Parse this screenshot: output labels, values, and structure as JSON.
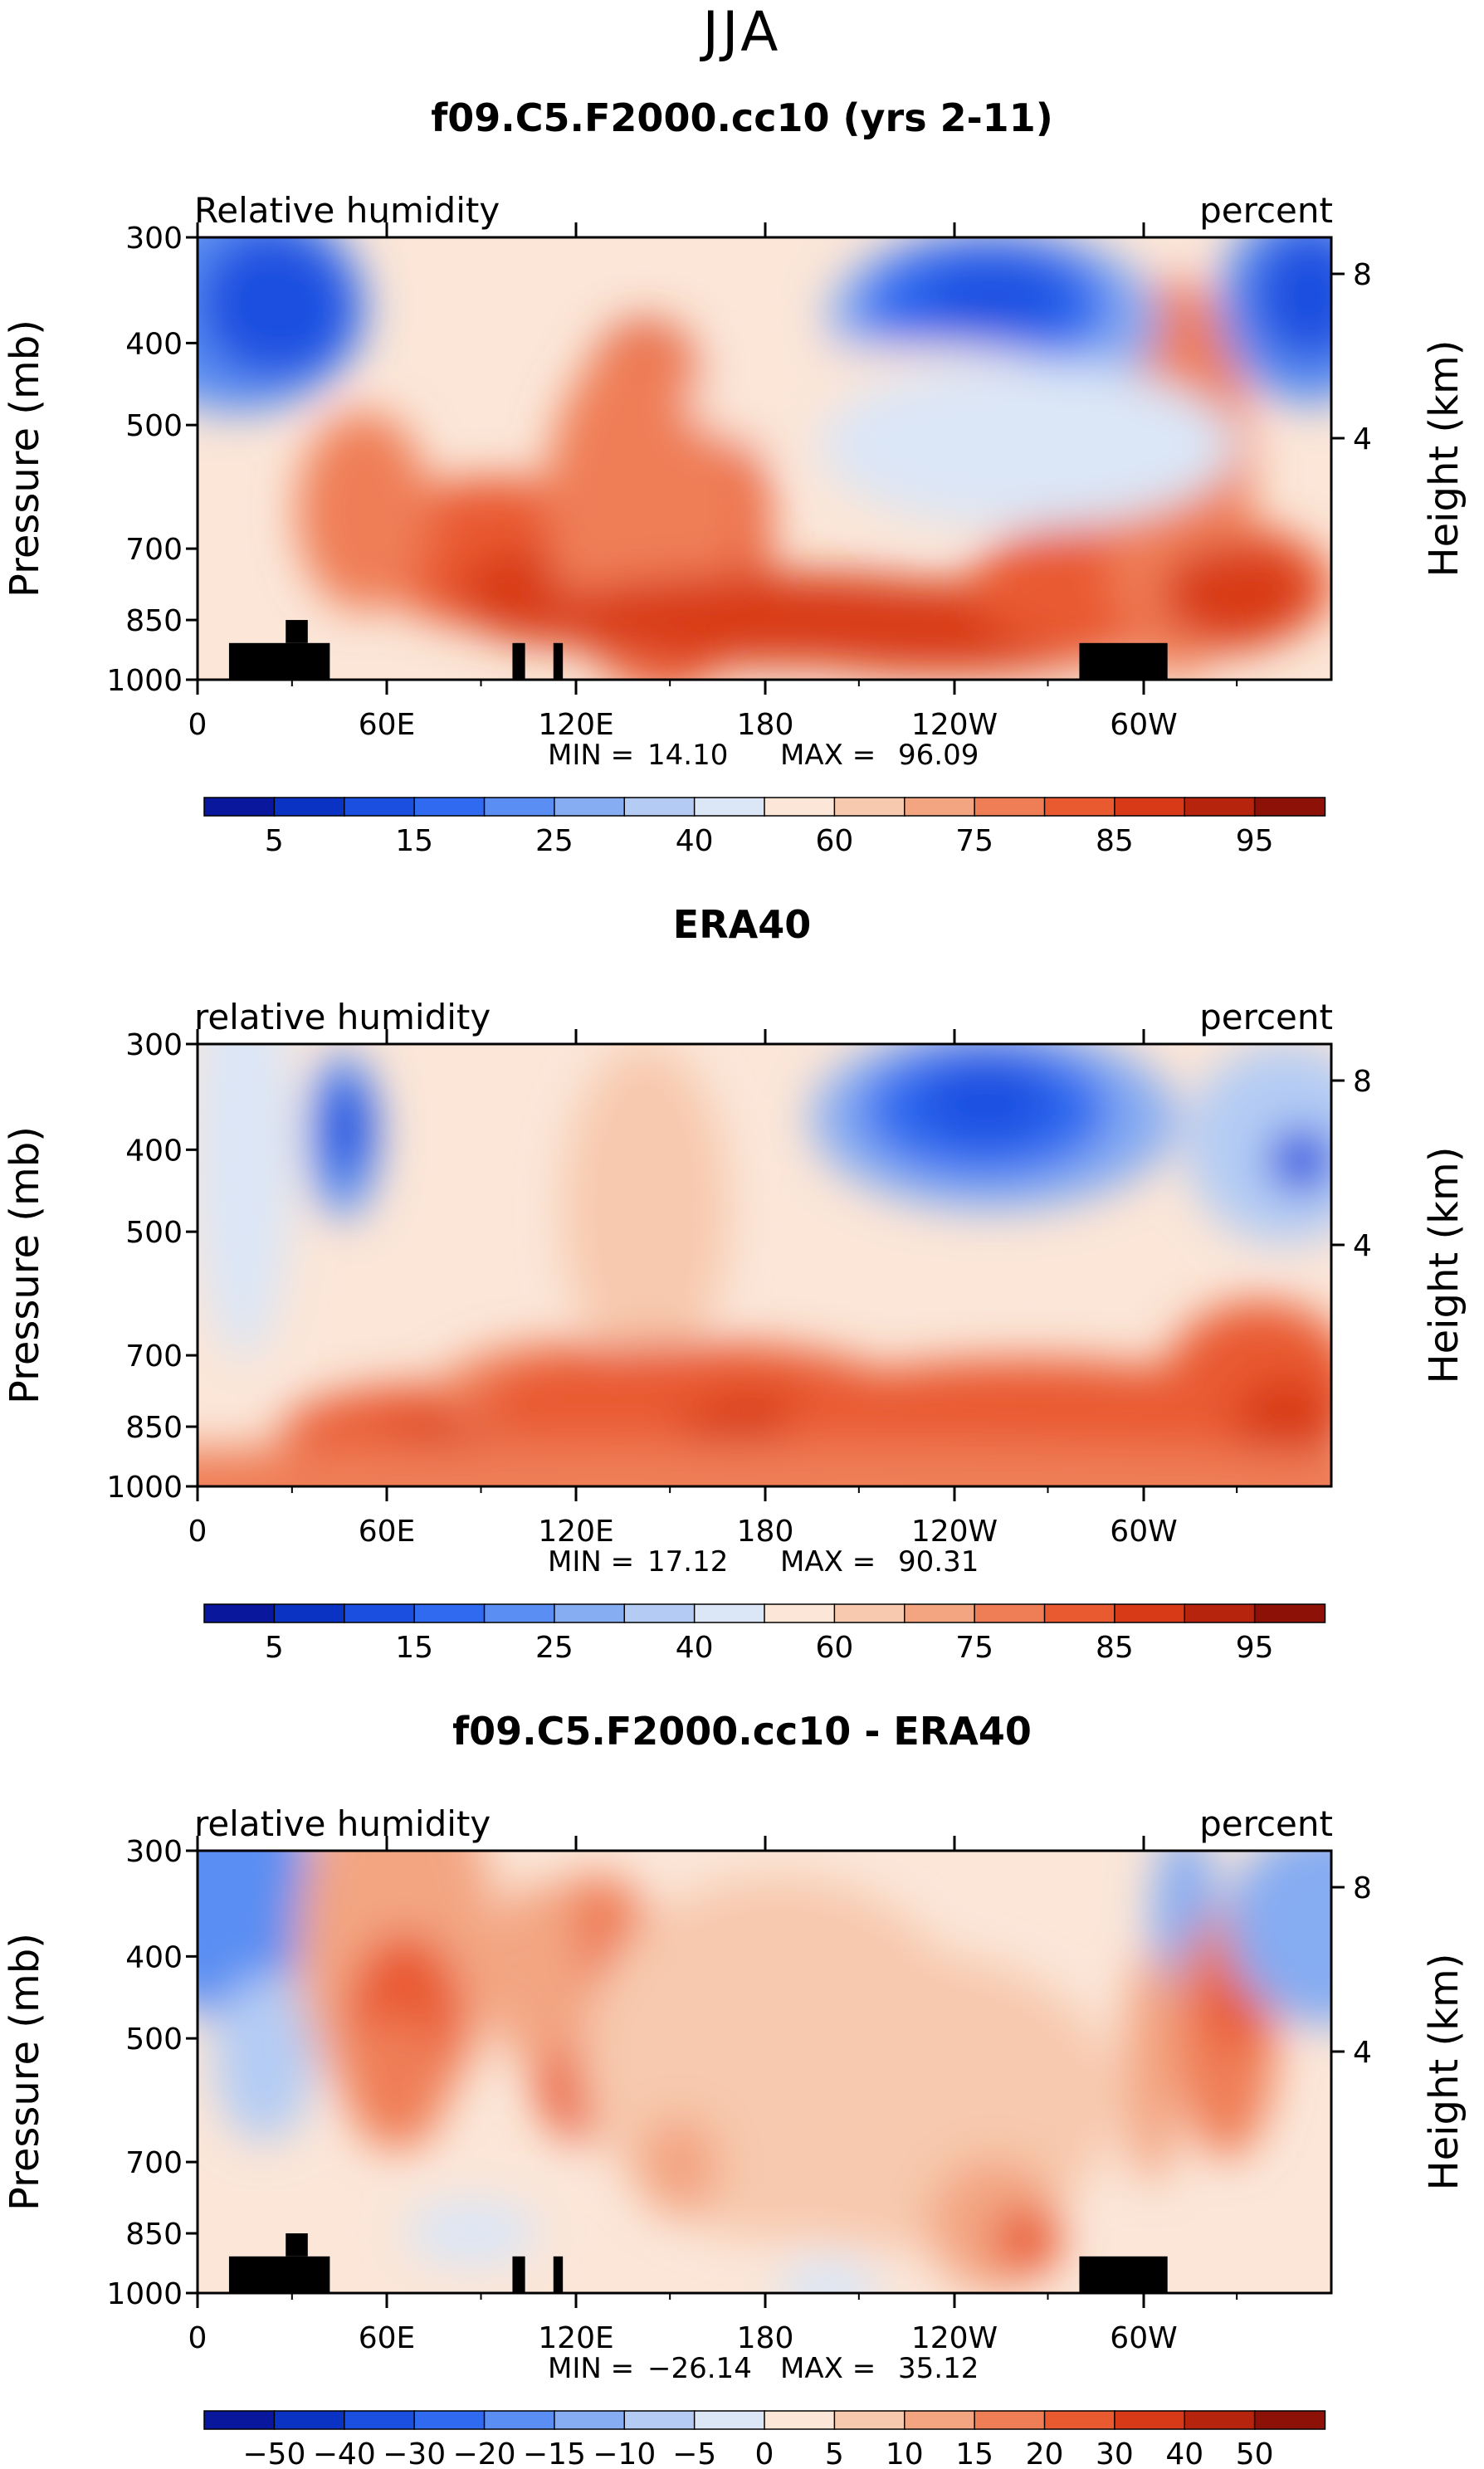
{
  "page_title": "JJA",
  "chart_data": [
    {
      "type": "heatmap",
      "title": "f09.C5.F2000.cc10 (yrs 2-11)",
      "left_string": "Relative humidity",
      "right_string": "percent",
      "ylabel": "Pressure (mb)",
      "y2label": "Height (km)",
      "xticks": [
        "0",
        "60E",
        "120E",
        "180",
        "120W",
        "60W"
      ],
      "yticks": [
        "300",
        "400",
        "500",
        "700",
        "850",
        "1000"
      ],
      "y2ticks": [
        "8",
        "4"
      ],
      "min_label": "MIN =",
      "min_value": "14.10",
      "max_label": "MAX =",
      "max_value": "96.09",
      "colorbar_labels": [
        "5",
        "15",
        "25",
        "40",
        "60",
        "75",
        "85",
        "95"
      ],
      "palette": [
        "#08179b",
        "#0a33c4",
        "#1a4fe0",
        "#2f6af0",
        "#5a8ef2",
        "#86acf2",
        "#b4ccf4",
        "#dbe6f6",
        "#fbe6d8",
        "#f7c9ae",
        "#f3a582",
        "#ef7e56",
        "#e95a30",
        "#d83a18",
        "#b7240e",
        "#8e1108"
      ]
    },
    {
      "type": "heatmap",
      "title": "ERA40",
      "left_string": "relative humidity",
      "right_string": "percent",
      "ylabel": "Pressure (mb)",
      "y2label": "Height (km)",
      "xticks": [
        "0",
        "60E",
        "120E",
        "180",
        "120W",
        "60W"
      ],
      "yticks": [
        "300",
        "400",
        "500",
        "700",
        "850",
        "1000"
      ],
      "y2ticks": [
        "8",
        "4"
      ],
      "min_label": "MIN =",
      "min_value": "17.12",
      "max_label": "MAX =",
      "max_value": "90.31",
      "colorbar_labels": [
        "5",
        "15",
        "25",
        "40",
        "60",
        "75",
        "85",
        "95"
      ],
      "palette": [
        "#08179b",
        "#0a33c4",
        "#1a4fe0",
        "#2f6af0",
        "#5a8ef2",
        "#86acf2",
        "#b4ccf4",
        "#dbe6f6",
        "#fbe6d8",
        "#f7c9ae",
        "#f3a582",
        "#ef7e56",
        "#e95a30",
        "#d83a18",
        "#b7240e",
        "#8e1108"
      ]
    },
    {
      "type": "heatmap",
      "title": "f09.C5.F2000.cc10 - ERA40",
      "left_string": "relative humidity",
      "right_string": "percent",
      "ylabel": "Pressure (mb)",
      "y2label": "Height (km)",
      "xticks": [
        "0",
        "60E",
        "120E",
        "180",
        "120W",
        "60W"
      ],
      "yticks": [
        "300",
        "400",
        "500",
        "700",
        "850",
        "1000"
      ],
      "y2ticks": [
        "8",
        "4"
      ],
      "min_label": "MIN =",
      "min_value": "−26.14",
      "max_label": "MAX =",
      "max_value": "35.12",
      "colorbar_labels": [
        "−50",
        "−40",
        "−30",
        "−20",
        "−15",
        "−10",
        "−5",
        "0",
        "5",
        "10",
        "15",
        "20",
        "30",
        "40",
        "50"
      ],
      "palette": [
        "#08179b",
        "#0a33c4",
        "#1a4fe0",
        "#2f6af0",
        "#5a8ef2",
        "#86acf2",
        "#b4ccf4",
        "#dbe6f6",
        "#fbe6d8",
        "#f7c9ae",
        "#f3a582",
        "#ef7e56",
        "#e95a30",
        "#d83a18",
        "#b7240e",
        "#8e1108"
      ]
    }
  ]
}
